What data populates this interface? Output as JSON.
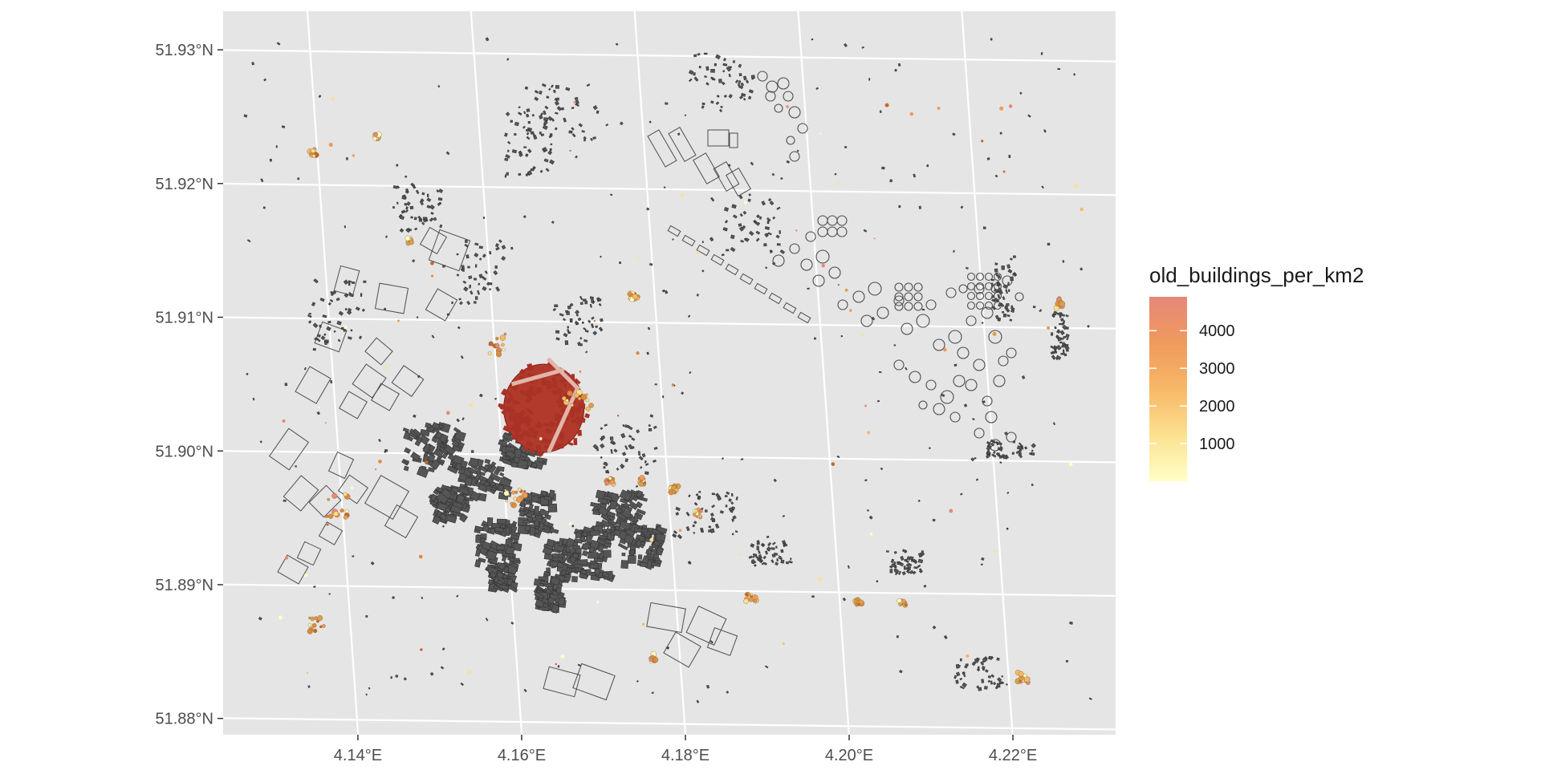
{
  "map": {
    "x_axis": {
      "ticks": [
        {
          "value": 4.14,
          "label": "4.14°E"
        },
        {
          "value": 4.16,
          "label": "4.16°E"
        },
        {
          "value": 4.18,
          "label": "4.18°E"
        },
        {
          "value": 4.2,
          "label": "4.20°E"
        },
        {
          "value": 4.22,
          "label": "4.22°E"
        }
      ],
      "range": [
        4.1265,
        4.2355
      ]
    },
    "y_axis": {
      "ticks": [
        {
          "value": 51.93,
          "label": "51.93°N"
        },
        {
          "value": 51.92,
          "label": "51.92°N"
        },
        {
          "value": 51.91,
          "label": "51.91°N"
        },
        {
          "value": 51.9,
          "label": "51.90°N"
        },
        {
          "value": 51.89,
          "label": "51.89°N"
        },
        {
          "value": 51.88,
          "label": "51.88°N"
        }
      ],
      "range": [
        51.8792,
        51.9333
      ]
    },
    "panel_background": "#e5e5e5",
    "grid_color": "#ffffff",
    "outline_color": "#4d4d4d"
  },
  "legend": {
    "title": "old_buildings_per_km2",
    "breaks": [
      {
        "value": 4000,
        "label": "4000"
      },
      {
        "value": 3000,
        "label": "3000"
      },
      {
        "value": 2000,
        "label": "2000"
      },
      {
        "value": 1000,
        "label": "1000"
      }
    ],
    "range": [
      0,
      4900
    ],
    "colors": [
      "#ffffc8",
      "#fbe18f",
      "#f7b867",
      "#ef9a5c",
      "#e6887a"
    ],
    "placement": "right"
  },
  "chart_data": {
    "type": "map",
    "title": "",
    "xlabel": "",
    "ylabel": "",
    "fill_variable": "old_buildings_per_km2",
    "highlight_cluster": {
      "lon": 4.1655,
      "lat": 51.9035,
      "fill": "#b23a2c"
    }
  }
}
